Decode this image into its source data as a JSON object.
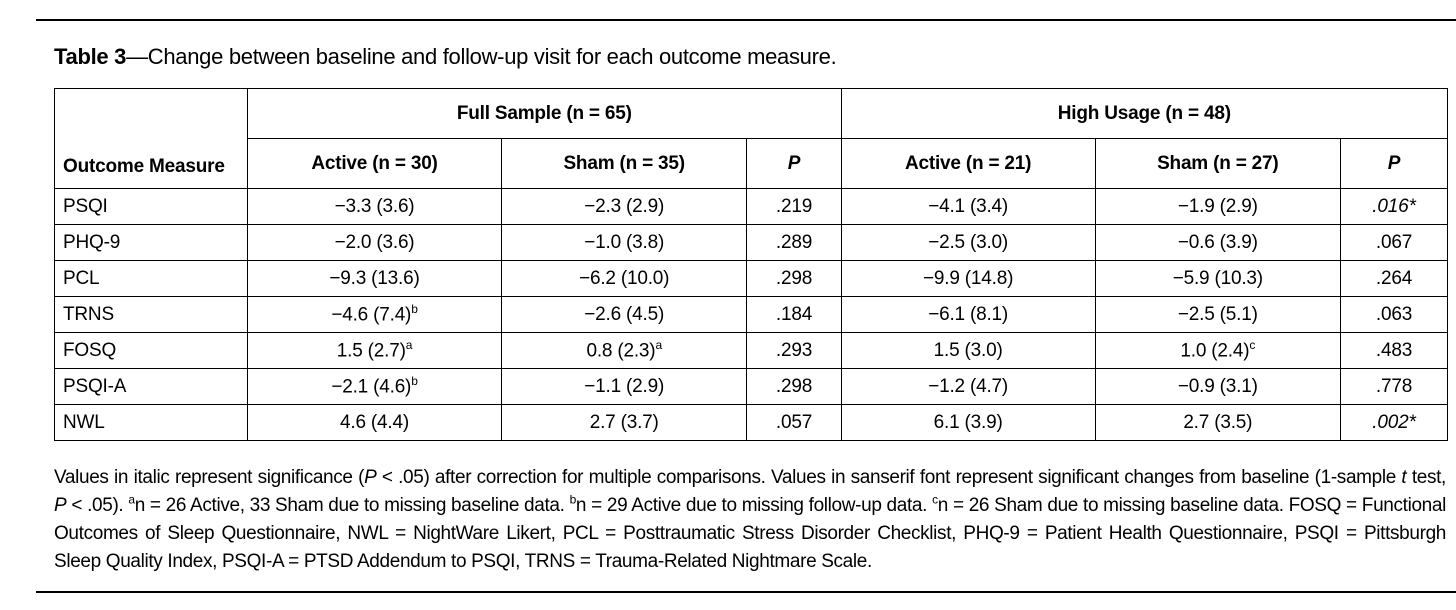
{
  "title": {
    "label": "Table 3",
    "text": "—Change between baseline and follow-up visit for each outcome measure."
  },
  "table": {
    "groups": [
      "Full Sample (n = 65)",
      "High Usage (n = 48)"
    ],
    "columns": [
      "Outcome Measure",
      "Active (n = 30)",
      "Sham (n = 35)",
      "P",
      "Active (n = 21)",
      "Sham (n = 27)",
      "P"
    ],
    "rows": [
      [
        "PSQI",
        "−3.3 (3.6)",
        "−2.3 (2.9)",
        ".219",
        "−4.1 (3.4)",
        "−1.9 (2.9)",
        ".016*"
      ],
      [
        "PHQ-9",
        "−2.0 (3.6)",
        "−1.0 (3.8)",
        ".289",
        "−2.5 (3.0)",
        "−0.6 (3.9)",
        ".067"
      ],
      [
        "PCL",
        "−9.3 (13.6)",
        "−6.2 (10.0)",
        ".298",
        "−9.9 (14.8)",
        "−5.9 (10.3)",
        ".264"
      ],
      [
        "TRNS",
        {
          "text": "−4.6 (7.4)",
          "sup": "b"
        },
        "−2.6 (4.5)",
        ".184",
        "−6.1 (8.1)",
        "−2.5 (5.1)",
        ".063"
      ],
      [
        "FOSQ",
        {
          "text": "1.5 (2.7)",
          "sup": "a"
        },
        {
          "text": "0.8 (2.3)",
          "sup": "a"
        },
        ".293",
        "1.5 (3.0)",
        {
          "text": "1.0 (2.4)",
          "sup": "c"
        },
        ".483"
      ],
      [
        "PSQI-A",
        {
          "text": "−2.1 (4.6)",
          "sup": "b"
        },
        "−1.1 (2.9)",
        ".298",
        "−1.2 (4.7)",
        "−0.9 (3.1)",
        ".778"
      ],
      [
        "NWL",
        "4.6 (4.4)",
        "2.7 (3.7)",
        ".057",
        "6.1 (3.9)",
        "2.7 (3.5)",
        ".002*"
      ]
    ]
  },
  "footnote": [
    "Values in italic represent significance (",
    "P",
    " < .05) after correction for multiple comparisons. Values in sanserif font represent significant changes from baseline (1-sample ",
    "t",
    " test, ",
    "P",
    " < .05). ",
    "a",
    "n = 26 Active, 33 Sham due to missing baseline data. ",
    "b",
    "n = 29 Active due to missing follow-up data. ",
    "c",
    "n = 26 Sham due to missing baseline data. FOSQ = Functional Outcomes of Sleep Questionnaire, NWL = NightWare Likert, PCL = Posttraumatic Stress Disorder Checklist, PHQ-9 = Patient Health Questionnaire, PSQI = Pittsburgh Sleep Quality Index, PSQI-A = PTSD Addendum to PSQI, TRNS = Trauma-Related Nightmare Scale."
  ]
}
